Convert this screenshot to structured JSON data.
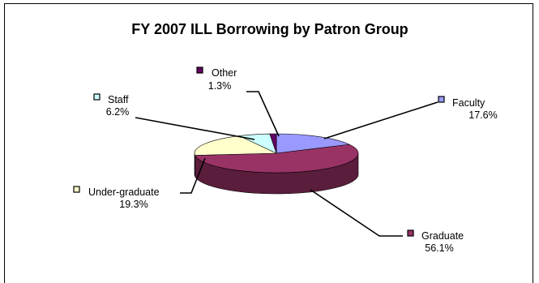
{
  "chart_data": {
    "type": "pie",
    "title": "FY 2007 ILL Borrowing by Patron Group",
    "slices": [
      {
        "label": "Faculty",
        "value": 17.6,
        "value_label": "17.6%",
        "color": "#9999ff",
        "side_color": "#5c5cb8"
      },
      {
        "label": "Graduate",
        "value": 56.1,
        "value_label": "56.1%",
        "color": "#993366",
        "side_color": "#5a1d3b"
      },
      {
        "label": "Under-graduate",
        "value": 19.3,
        "value_label": "19.3%",
        "color": "#ffffcc",
        "side_color": "#b8b88e"
      },
      {
        "label": "Staff",
        "value": 6.2,
        "value_label": "6.2%",
        "color": "#ccffff",
        "side_color": "#8cb8b8"
      },
      {
        "label": "Other",
        "value": 1.3,
        "value_label": "1.3%",
        "color": "#660066",
        "side_color": "#3a003a"
      }
    ],
    "style": "3d",
    "legend": "none"
  }
}
